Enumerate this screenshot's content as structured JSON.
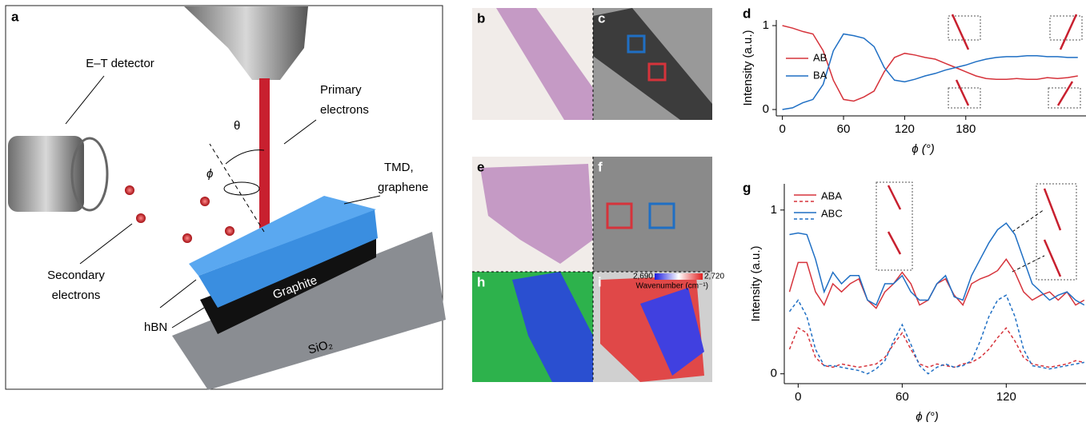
{
  "panel_labels": {
    "a": "a",
    "b": "b",
    "c": "c",
    "d": "d",
    "e": "e",
    "f": "f",
    "g": "g",
    "h": "h",
    "i": "i"
  },
  "schematic": {
    "detector": "E–T detector",
    "primary": [
      "Primary",
      "electrons"
    ],
    "theta": "θ",
    "phi": "ϕ",
    "sample": [
      "TMD,",
      "graphene"
    ],
    "secondary": [
      "Secondary",
      "electrons"
    ],
    "hbn": "hBN",
    "graphite": "Graphite",
    "substrate": "SiO₂"
  },
  "colorbar": {
    "min": {
      "value": 2690,
      "label": "2,690"
    },
    "max": {
      "value": 2720,
      "label": "2,720"
    },
    "title": "Wavenumber (cm⁻¹)"
  },
  "chart_data": [
    {
      "type": "line",
      "ylabel": "Intensity (a.u.)",
      "xlabel": "ϕ (°)",
      "x": [
        0,
        10,
        20,
        30,
        40,
        50,
        60,
        70,
        80,
        90,
        100,
        110,
        120,
        130,
        140,
        150,
        160,
        170,
        180,
        190,
        200,
        210,
        220,
        230,
        240,
        250,
        260,
        270,
        280,
        290
      ],
      "series": [
        {
          "name": "AB",
          "color": "#d6333b",
          "values": [
            1.0,
            0.97,
            0.93,
            0.9,
            0.7,
            0.35,
            0.12,
            0.1,
            0.15,
            0.22,
            0.45,
            0.62,
            0.67,
            0.65,
            0.62,
            0.6,
            0.55,
            0.5,
            0.45,
            0.4,
            0.37,
            0.36,
            0.36,
            0.37,
            0.36,
            0.36,
            0.38,
            0.37,
            0.38,
            0.4
          ]
        },
        {
          "name": "BA",
          "color": "#1f6fc4",
          "values": [
            0,
            0.02,
            0.08,
            0.12,
            0.3,
            0.7,
            0.9,
            0.88,
            0.85,
            0.75,
            0.5,
            0.35,
            0.33,
            0.36,
            0.4,
            0.43,
            0.47,
            0.5,
            0.53,
            0.57,
            0.6,
            0.62,
            0.63,
            0.63,
            0.64,
            0.64,
            0.63,
            0.63,
            0.62,
            0.62
          ]
        }
      ],
      "xlim": [
        -6,
        298
      ],
      "ylim": [
        -0.076,
        1.067
      ],
      "xticks": [
        0,
        60,
        120,
        180
      ],
      "yticks": [
        0,
        1
      ],
      "legend": "upper left"
    },
    {
      "type": "line",
      "ylabel": "Intensity (a.u.)",
      "xlabel": "ϕ (°)",
      "x": [
        -5,
        0,
        5,
        10,
        15,
        20,
        25,
        30,
        35,
        40,
        45,
        50,
        55,
        60,
        65,
        70,
        75,
        80,
        85,
        90,
        95,
        100,
        105,
        110,
        115,
        120,
        125,
        130,
        135,
        140,
        145,
        150,
        155,
        160,
        165
      ],
      "series": [
        {
          "name": "ABA",
          "color": "#d6333b",
          "values": [
            0.5,
            0.68,
            0.68,
            0.5,
            0.42,
            0.55,
            0.5,
            0.55,
            0.58,
            0.45,
            0.4,
            0.5,
            0.55,
            0.62,
            0.55,
            0.42,
            0.45,
            0.55,
            0.58,
            0.48,
            0.42,
            0.55,
            0.58,
            0.6,
            0.63,
            0.7,
            0.62,
            0.5,
            0.45,
            0.48,
            0.5,
            0.45,
            0.5,
            0.42,
            0.45
          ],
          "values_dashed": [
            0.15,
            0.28,
            0.25,
            0.1,
            0.05,
            0.04,
            0.06,
            0.05,
            0.04,
            0.05,
            0.06,
            0.1,
            0.18,
            0.25,
            0.15,
            0.06,
            0.04,
            0.06,
            0.05,
            0.04,
            0.06,
            0.07,
            0.1,
            0.15,
            0.22,
            0.28,
            0.2,
            0.1,
            0.06,
            0.05,
            0.04,
            0.05,
            0.06,
            0.08,
            0.07
          ]
        },
        {
          "name": "ABC",
          "color": "#1f6fc4",
          "values": [
            0.85,
            0.86,
            0.85,
            0.7,
            0.5,
            0.62,
            0.55,
            0.6,
            0.6,
            0.45,
            0.42,
            0.55,
            0.55,
            0.6,
            0.5,
            0.45,
            0.45,
            0.55,
            0.6,
            0.47,
            0.45,
            0.6,
            0.7,
            0.8,
            0.88,
            0.92,
            0.85,
            0.7,
            0.55,
            0.5,
            0.45,
            0.48,
            0.5,
            0.45,
            0.42
          ],
          "values_dashed": [
            0.38,
            0.45,
            0.35,
            0.15,
            0.05,
            0.05,
            0.04,
            0.03,
            0.02,
            0.0,
            0.03,
            0.08,
            0.2,
            0.3,
            0.18,
            0.05,
            0.0,
            0.04,
            0.06,
            0.04,
            0.05,
            0.08,
            0.2,
            0.35,
            0.45,
            0.48,
            0.35,
            0.15,
            0.05,
            0.04,
            0.03,
            0.04,
            0.05,
            0.06,
            0.07
          ]
        }
      ],
      "xlim": [
        -8,
        166
      ],
      "ylim": [
        -0.06,
        1.16
      ],
      "xticks": [
        0,
        60,
        120
      ],
      "yticks": [
        0,
        1
      ],
      "legend": "upper left"
    }
  ]
}
